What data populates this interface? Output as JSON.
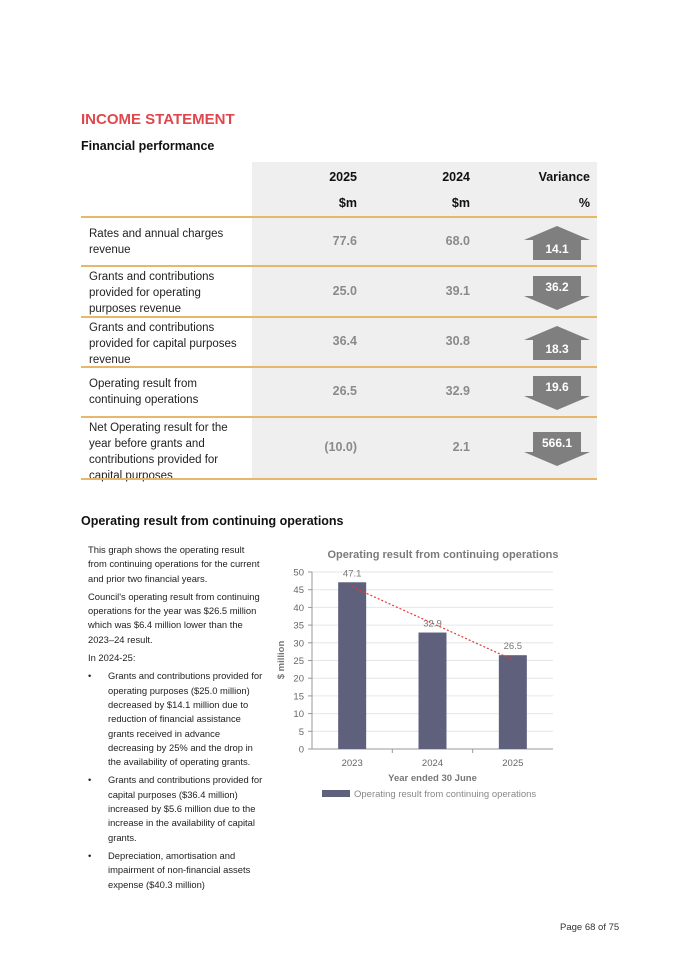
{
  "title": "INCOME STATEMENT",
  "subtitle": "Financial performance",
  "table": {
    "headers": [
      {
        "year": "2025",
        "unit": "$m"
      },
      {
        "year": "2024",
        "unit": "$m"
      },
      {
        "year": "Variance",
        "unit": "%"
      }
    ],
    "rows": [
      {
        "label": "Rates and annual charges revenue",
        "v2025": "77.6",
        "v2024": "68.0",
        "variance": "14.1",
        "direction": "up"
      },
      {
        "label": "Grants and contributions provided for operating purposes revenue",
        "v2025": "25.0",
        "v2024": "39.1",
        "variance": "36.2",
        "direction": "down"
      },
      {
        "label": "Grants and contributions provided for capital purposes revenue",
        "v2025": "36.4",
        "v2024": "30.8",
        "variance": "18.3",
        "direction": "up"
      },
      {
        "label": "Operating result from continuing operations",
        "v2025": "26.5",
        "v2024": "32.9",
        "variance": "19.6",
        "direction": "down"
      },
      {
        "label": "Net Operating result for the year before grants and contributions provided for capital purposes",
        "v2025": "(10.0)",
        "v2024": "2.1",
        "variance": "566.1",
        "direction": "down"
      }
    ]
  },
  "section2": {
    "heading": "Operating result from continuing operations",
    "paragraphs": [
      "This graph shows the operating result from continuing operations for the current and prior two financial years.",
      "Council's operating result from continuing operations for the year was $26.5 million which was $6.4 million lower than the 2023–24 result.",
      "In 2024-25:"
    ],
    "bullets": [
      "Grants and contributions provided for operating purposes ($25.0 million) decreased by $14.1 million due to reduction of financial assistance grants received in advance decreasing by 25% and the drop in the availability of operating grants.",
      "Grants and contributions provided for capital purposes ($36.4 million) increased by $5.6 million due to the increase in the availability of capital grants.",
      "Depreciation, amortisation and impairment of non-financial assets expense ($40.3 million)"
    ]
  },
  "chart_data": {
    "type": "bar",
    "title": "Operating result from continuing operations",
    "categories": [
      "2023",
      "2024",
      "2025"
    ],
    "values": [
      47.1,
      32.9,
      26.5
    ],
    "data_labels": [
      "47.1",
      "32.9",
      "26.5"
    ],
    "xlabel": "Year ended 30 June",
    "ylabel": "$ million",
    "ylim": [
      0,
      50
    ],
    "yticks": [
      "0",
      "5",
      "10",
      "15",
      "20",
      "25",
      "30",
      "35",
      "40",
      "45",
      "50"
    ],
    "legend": "Operating result from continuing operations",
    "legend_position": "bottom",
    "trendline": "linear, dotted",
    "grid": true,
    "bar_color": "#5f607c",
    "trend_color": "#e03a3a"
  },
  "footer": "Page 68 of 75"
}
